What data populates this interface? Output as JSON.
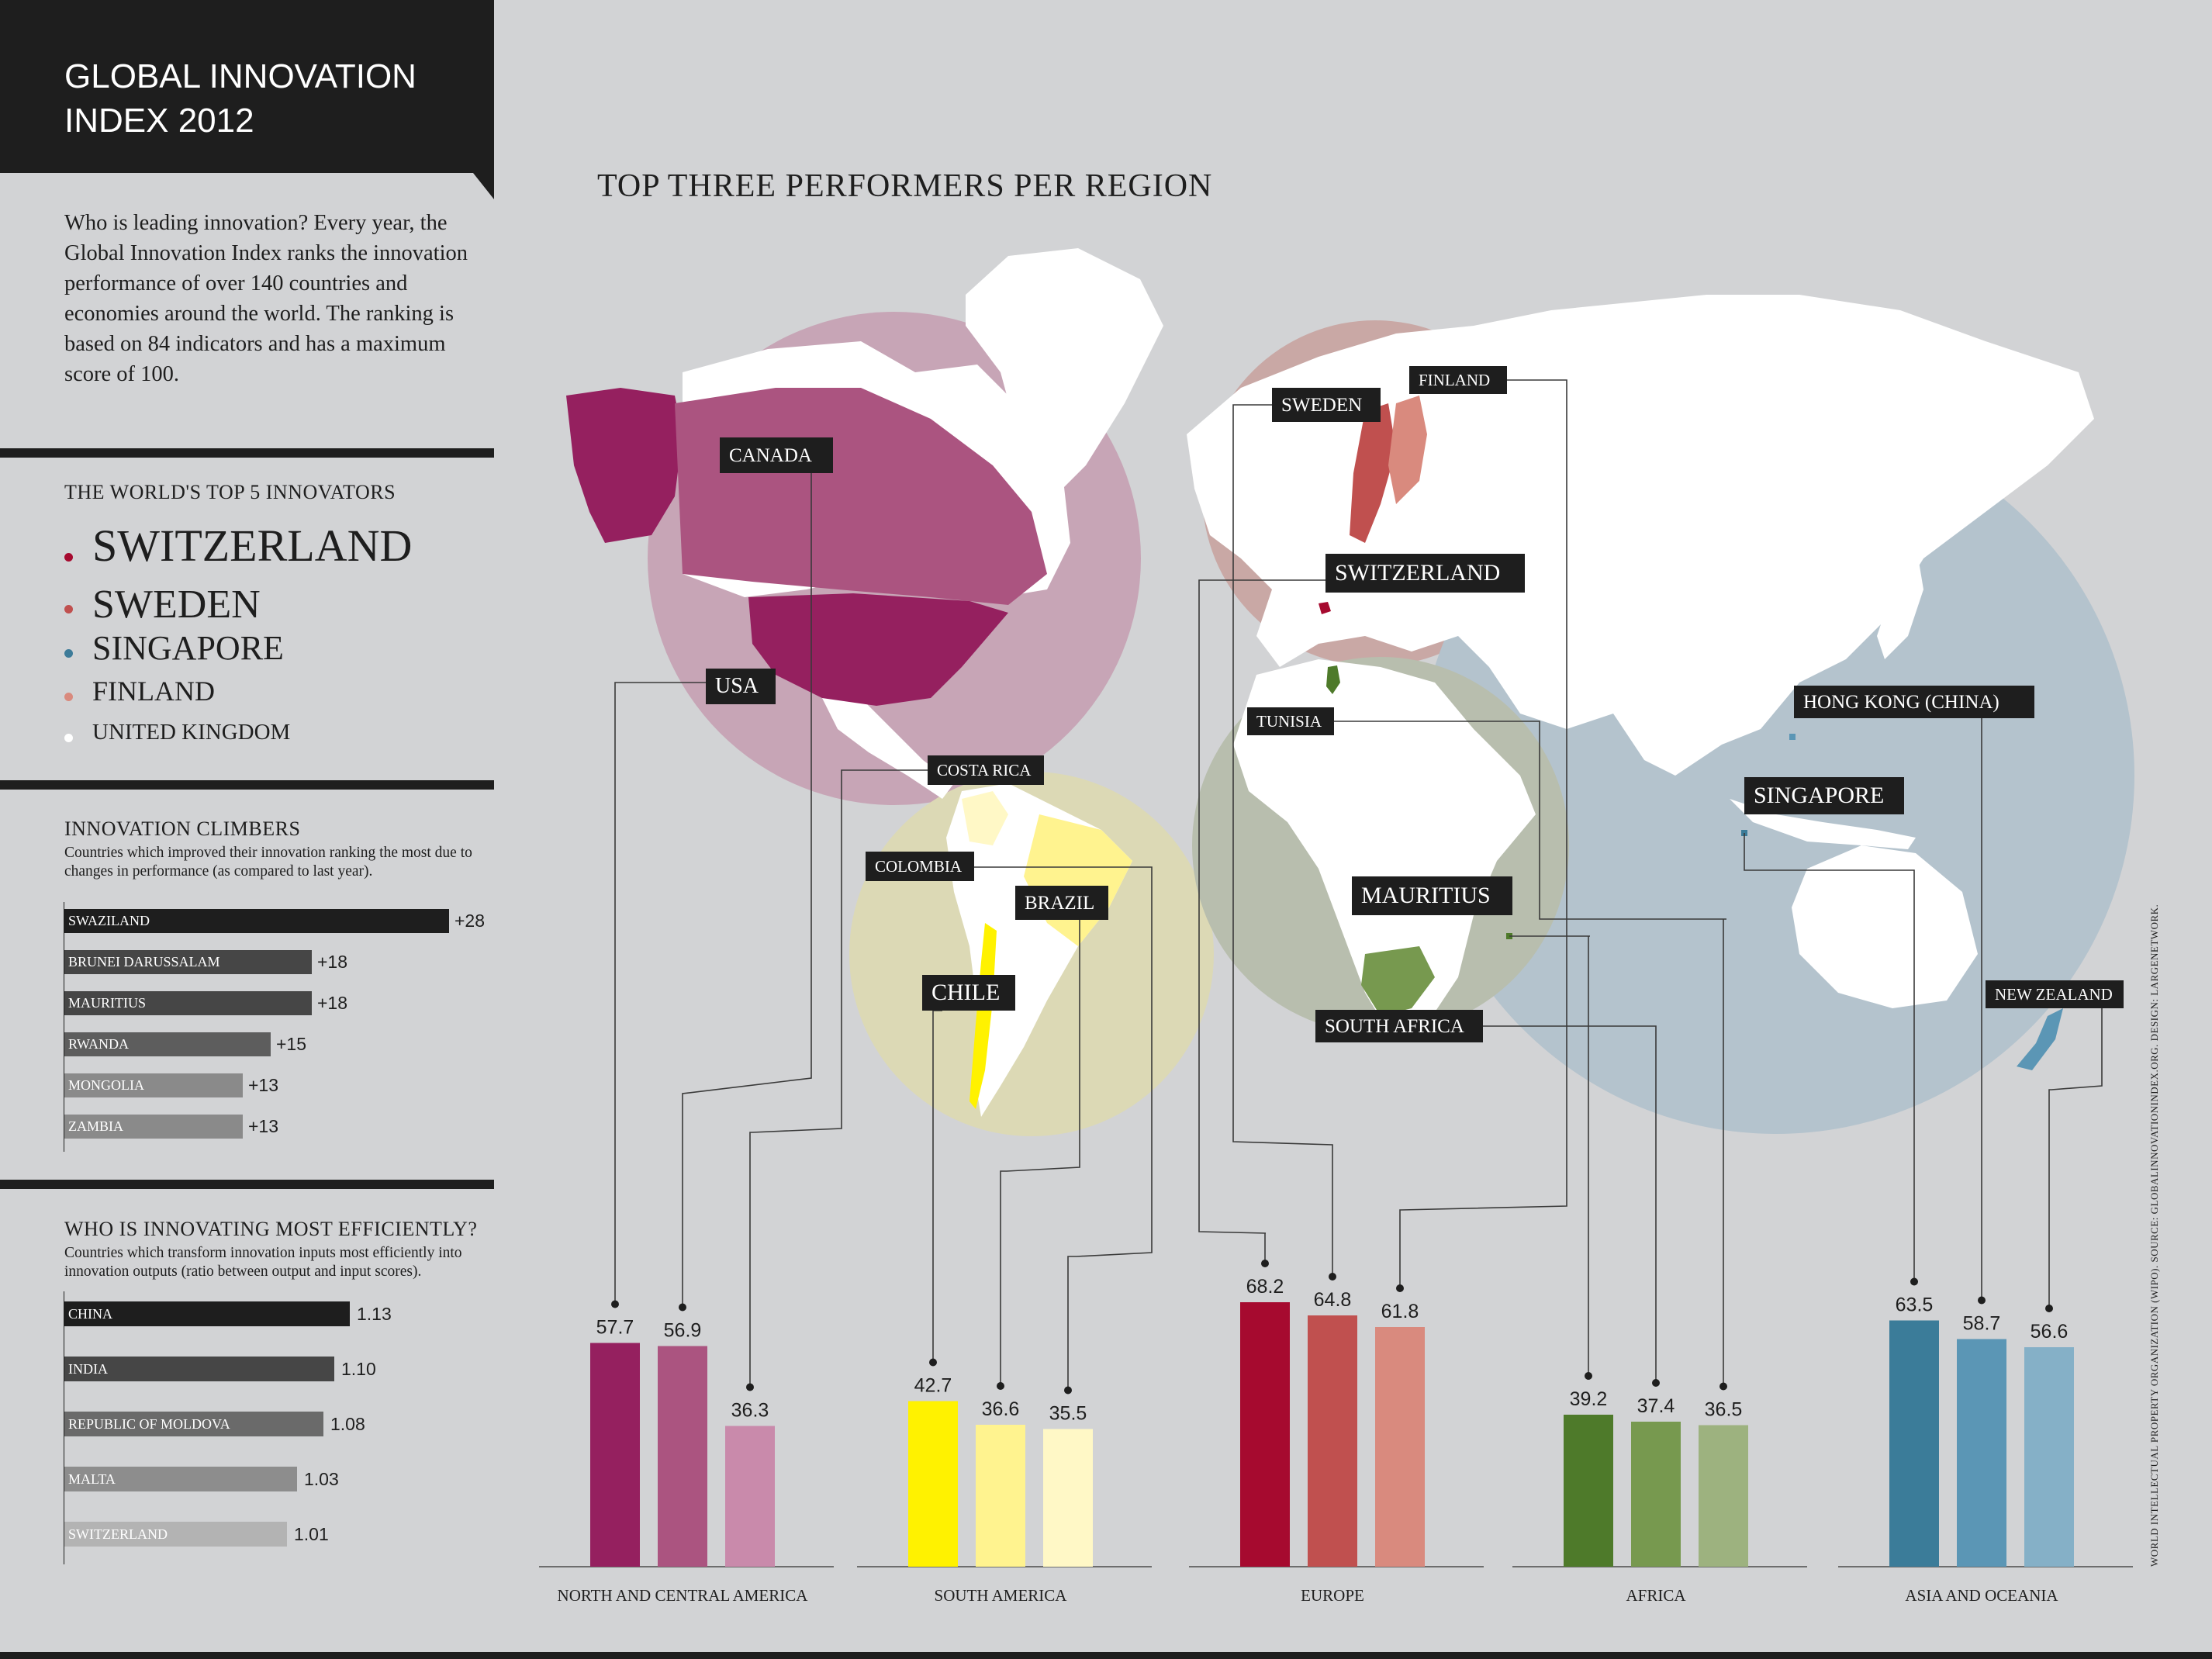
{
  "header": {
    "title": "GLOBAL INNOVATION\nINDEX 2012",
    "intro": "Who is leading innovation? Every year, the Global Innovation Index ranks the innovation performance of over 140 countries and economies around the world. The ranking is based on 84 indicators and has a maximum score of 100."
  },
  "top5": {
    "title": "THE WORLD'S TOP 5 INNOVATORS",
    "items": [
      {
        "name": "SWITZERLAND",
        "color": "#a60a2f"
      },
      {
        "name": "SWEDEN",
        "color": "#c0504f"
      },
      {
        "name": "SINGAPORE",
        "color": "#3d7b99"
      },
      {
        "name": "FINLAND",
        "color": "#d98a7e"
      },
      {
        "name": "UNITED KINGDOM",
        "color": "#ffffff"
      }
    ]
  },
  "climbers": {
    "title": "INNOVATION CLIMBERS",
    "subtitle": "Countries which improved their innovation ranking the most due to changes in performance (as compared to last year).",
    "items": [
      {
        "name": "SWAZILAND",
        "value": 28,
        "label": "+28"
      },
      {
        "name": "BRUNEI DARUSSALAM",
        "value": 18,
        "label": "+18"
      },
      {
        "name": "MAURITIUS",
        "value": 18,
        "label": "+18"
      },
      {
        "name": "RWANDA",
        "value": 15,
        "label": "+15"
      },
      {
        "name": "MONGOLIA",
        "value": 13,
        "label": "+13"
      },
      {
        "name": "ZAMBIA",
        "value": 13,
        "label": "+13"
      }
    ]
  },
  "efficiency": {
    "title": "WHO IS INNOVATING MOST EFFICIENTLY?",
    "subtitle": "Countries which transform innovation inputs most efficiently into innovation outputs (ratio between output and input scores).",
    "items": [
      {
        "name": "CHINA",
        "value": 1.13,
        "label": "1.13"
      },
      {
        "name": "INDIA",
        "value": 1.1,
        "label": "1.10"
      },
      {
        "name": "REPUBLIC OF MOLDOVA",
        "value": 1.08,
        "label": "1.08"
      },
      {
        "name": "MALTA",
        "value": 1.03,
        "label": "1.03"
      },
      {
        "name": "SWITZERLAND",
        "value": 1.01,
        "label": "1.01"
      }
    ]
  },
  "map": {
    "title": "TOP THREE PERFORMERS PER REGION",
    "source_note": "WORLD INTELLECTUAL PROPERTY ORGANIZATION (WIPO). SOURCE: GLOBALINNOVATIONINDEX.ORG. DESIGN: LARGENETWORK."
  },
  "chart_data": {
    "type": "bar",
    "title": "TOP THREE PERFORMERS PER REGION",
    "groups": [
      {
        "region": "NORTH AND CENTRAL AMERICA",
        "bars": [
          {
            "country": "USA",
            "value": 57.7,
            "color": "#95205f"
          },
          {
            "country": "CANADA",
            "value": 56.9,
            "color": "#ab5480"
          },
          {
            "country": "COSTA RICA",
            "value": 36.3,
            "color": "#c98aab"
          }
        ]
      },
      {
        "region": "SOUTH AMERICA",
        "bars": [
          {
            "country": "CHILE",
            "value": 42.7,
            "color": "#fff200"
          },
          {
            "country": "BRAZIL",
            "value": 36.6,
            "color": "#fff38f"
          },
          {
            "country": "COLOMBIA",
            "value": 35.5,
            "color": "#fff8c6"
          }
        ]
      },
      {
        "region": "EUROPE",
        "bars": [
          {
            "country": "SWITZERLAND",
            "value": 68.2,
            "color": "#a60a2f"
          },
          {
            "country": "SWEDEN",
            "value": 64.8,
            "color": "#c0504f"
          },
          {
            "country": "FINLAND",
            "value": 61.8,
            "color": "#d98a7e"
          }
        ]
      },
      {
        "region": "AFRICA",
        "bars": [
          {
            "country": "MAURITIUS",
            "value": 39.2,
            "color": "#4e7a2a"
          },
          {
            "country": "SOUTH AFRICA",
            "value": 37.4,
            "color": "#77994f"
          },
          {
            "country": "TUNISIA",
            "value": 36.5,
            "color": "#9db27f"
          }
        ]
      },
      {
        "region": "ASIA AND OCEANIA",
        "bars": [
          {
            "country": "SINGAPORE",
            "value": 63.5,
            "color": "#3b7c99"
          },
          {
            "country": "HONG KONG (CHINA)",
            "value": 58.7,
            "color": "#5b96b5"
          },
          {
            "country": "NEW ZEALAND",
            "value": 56.6,
            "color": "#85b0c7"
          }
        ]
      }
    ]
  }
}
